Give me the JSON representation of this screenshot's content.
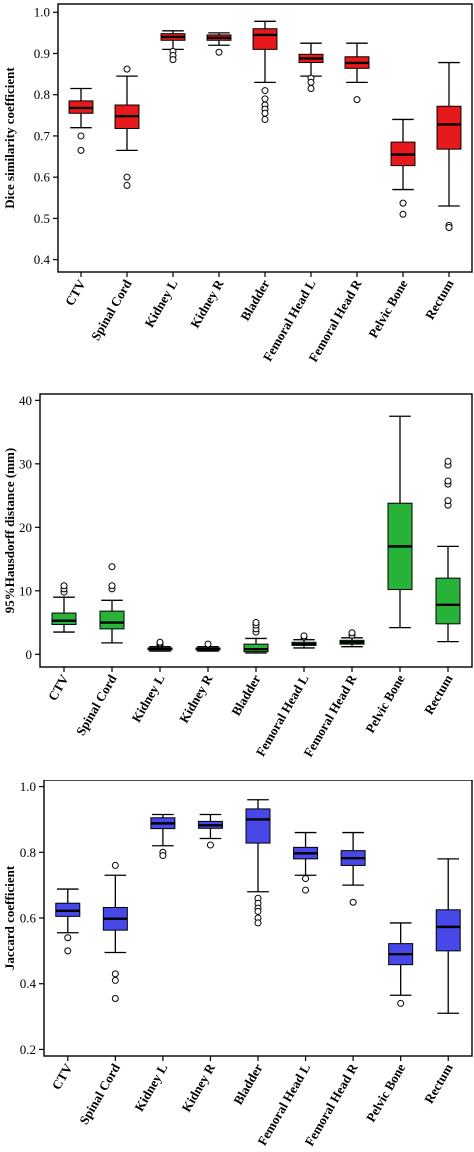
{
  "chart_data": [
    {
      "type": "boxplot",
      "ylabel": "Dice similarity coefficient",
      "ylim": [
        0.37,
        1.02
      ],
      "yticks": [
        0.4,
        0.5,
        0.6,
        0.7,
        0.8,
        0.9,
        1.0
      ],
      "ytick_labels": [
        "0.4",
        "0.5",
        "0.6",
        "0.7",
        "0.8",
        "0.9",
        "1.0"
      ],
      "color": "#e8191c",
      "categories": [
        "CTV",
        "Spinal Cord",
        "Kidney L",
        "Kidney R",
        "Bladder",
        "Femoral Head L",
        "Femoral Head R",
        "Pelvic Bone",
        "Rectum"
      ],
      "boxes": [
        {
          "min": 0.72,
          "q1": 0.755,
          "median": 0.768,
          "q3": 0.785,
          "max": 0.815,
          "outliers": [
            0.7,
            0.665
          ]
        },
        {
          "min": 0.665,
          "q1": 0.718,
          "median": 0.748,
          "q3": 0.775,
          "max": 0.845,
          "outliers": [
            0.862,
            0.6,
            0.58
          ]
        },
        {
          "min": 0.91,
          "q1": 0.932,
          "median": 0.94,
          "q3": 0.948,
          "max": 0.955,
          "outliers": [
            0.905,
            0.895,
            0.885
          ]
        },
        {
          "min": 0.92,
          "q1": 0.932,
          "median": 0.938,
          "q3": 0.945,
          "max": 0.95,
          "outliers": [
            0.903
          ]
        },
        {
          "min": 0.83,
          "q1": 0.91,
          "median": 0.945,
          "q3": 0.96,
          "max": 0.978,
          "outliers": [
            0.81,
            0.79,
            0.775,
            0.765,
            0.755,
            0.74
          ]
        },
        {
          "min": 0.845,
          "q1": 0.878,
          "median": 0.888,
          "q3": 0.898,
          "max": 0.925,
          "outliers": [
            0.84,
            0.83,
            0.815
          ]
        },
        {
          "min": 0.83,
          "q1": 0.864,
          "median": 0.877,
          "q3": 0.892,
          "max": 0.925,
          "outliers": [
            0.788
          ]
        },
        {
          "min": 0.57,
          "q1": 0.628,
          "median": 0.655,
          "q3": 0.685,
          "max": 0.74,
          "outliers": [
            0.537,
            0.51
          ]
        },
        {
          "min": 0.53,
          "q1": 0.668,
          "median": 0.728,
          "q3": 0.772,
          "max": 0.878,
          "outliers": [
            0.483,
            0.478
          ]
        }
      ]
    },
    {
      "type": "boxplot",
      "ylabel": "95%Hausdorff distance (mm)",
      "ylim": [
        -2,
        41
      ],
      "yticks": [
        0,
        10,
        20,
        30,
        40
      ],
      "ytick_labels": [
        "0",
        "10",
        "20",
        "30",
        "40"
      ],
      "color": "#29b23a",
      "categories": [
        "CTV",
        "Spinal Cord",
        "Kidney L",
        "Kidney R",
        "Bladder",
        "Femoral Head L",
        "Femoral Head R",
        "Pelvic Bone",
        "Rectum"
      ],
      "boxes": [
        {
          "min": 3.5,
          "q1": 4.7,
          "median": 5.3,
          "q3": 6.5,
          "max": 9.0,
          "outliers": [
            9.8,
            10.3,
            10.8
          ]
        },
        {
          "min": 1.8,
          "q1": 4.0,
          "median": 5.0,
          "q3": 6.8,
          "max": 8.5,
          "outliers": [
            10.3,
            10.8,
            13.8
          ]
        },
        {
          "min": 0.5,
          "q1": 0.7,
          "median": 0.85,
          "q3": 1.0,
          "max": 1.2,
          "outliers": [
            1.5,
            1.7,
            1.9
          ]
        },
        {
          "min": 0.5,
          "q1": 0.7,
          "median": 0.8,
          "q3": 1.0,
          "max": 1.2,
          "outliers": [
            1.6
          ]
        },
        {
          "min": 0.2,
          "q1": 0.4,
          "median": 0.8,
          "q3": 1.6,
          "max": 2.5,
          "outliers": [
            3.5,
            4.0,
            4.6,
            5.0
          ]
        },
        {
          "min": 1.0,
          "q1": 1.4,
          "median": 1.6,
          "q3": 1.9,
          "max": 2.3,
          "outliers": [
            2.7,
            2.9
          ]
        },
        {
          "min": 1.2,
          "q1": 1.6,
          "median": 1.9,
          "q3": 2.2,
          "max": 2.6,
          "outliers": [
            3.0,
            3.4
          ]
        },
        {
          "min": 4.2,
          "q1": 10.2,
          "median": 17.0,
          "q3": 23.8,
          "max": 37.5,
          "outliers": []
        },
        {
          "min": 2.0,
          "q1": 4.8,
          "median": 7.8,
          "q3": 12.0,
          "max": 17.0,
          "outliers": [
            23.5,
            24.2,
            26.8,
            27.3,
            29.8,
            30.4
          ]
        }
      ]
    },
    {
      "type": "boxplot",
      "ylabel": "Jaccard coefficient",
      "ylim": [
        0.18,
        1.02
      ],
      "yticks": [
        0.2,
        0.4,
        0.6,
        0.8,
        1.0
      ],
      "ytick_labels": [
        "0.2",
        "0.4",
        "0.6",
        "0.8",
        "1.0"
      ],
      "color": "#4848e8",
      "categories": [
        "CTV",
        "Spinal Cord",
        "Kidney L",
        "Kidney R",
        "Bladder",
        "Femoral Head L",
        "Femoral Head R",
        "Pelvic Bone",
        "Rectum"
      ],
      "boxes": [
        {
          "min": 0.555,
          "q1": 0.605,
          "median": 0.622,
          "q3": 0.645,
          "max": 0.688,
          "outliers": [
            0.54,
            0.5
          ]
        },
        {
          "min": 0.495,
          "q1": 0.563,
          "median": 0.598,
          "q3": 0.632,
          "max": 0.73,
          "outliers": [
            0.76,
            0.43,
            0.41,
            0.355
          ]
        },
        {
          "min": 0.82,
          "q1": 0.872,
          "median": 0.888,
          "q3": 0.905,
          "max": 0.915,
          "outliers": [
            0.8,
            0.79
          ]
        },
        {
          "min": 0.842,
          "q1": 0.873,
          "median": 0.882,
          "q3": 0.894,
          "max": 0.915,
          "outliers": [
            0.822
          ]
        },
        {
          "min": 0.68,
          "q1": 0.828,
          "median": 0.9,
          "q3": 0.932,
          "max": 0.96,
          "outliers": [
            0.66,
            0.645,
            0.63,
            0.62,
            0.6,
            0.585
          ]
        },
        {
          "min": 0.73,
          "q1": 0.78,
          "median": 0.797,
          "q3": 0.815,
          "max": 0.86,
          "outliers": [
            0.72,
            0.685
          ]
        },
        {
          "min": 0.7,
          "q1": 0.76,
          "median": 0.782,
          "q3": 0.805,
          "max": 0.86,
          "outliers": [
            0.648
          ]
        },
        {
          "min": 0.365,
          "q1": 0.458,
          "median": 0.49,
          "q3": 0.522,
          "max": 0.585,
          "outliers": [
            0.34
          ]
        },
        {
          "min": 0.31,
          "q1": 0.5,
          "median": 0.573,
          "q3": 0.625,
          "max": 0.78,
          "outliers": []
        }
      ]
    }
  ]
}
